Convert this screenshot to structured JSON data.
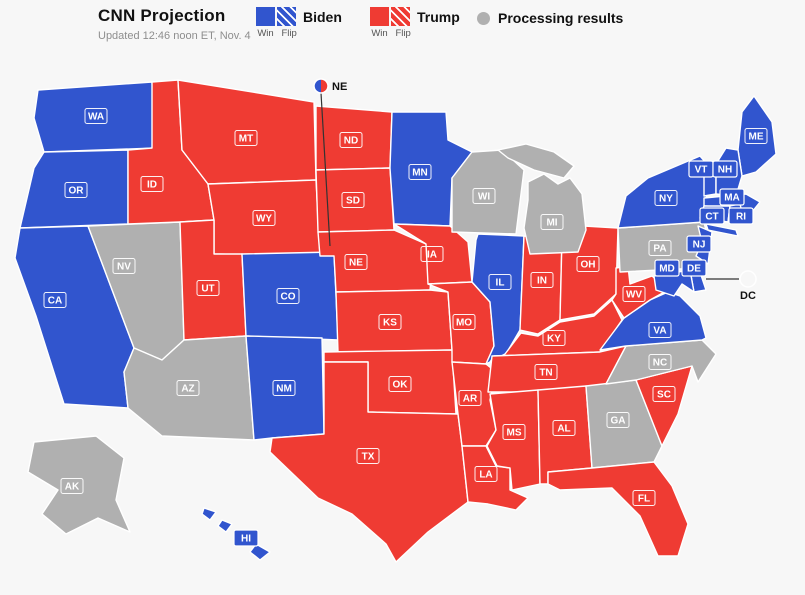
{
  "header": {
    "title": "CNN Projection",
    "updated": "Updated 12:46 noon ET, Nov. 4"
  },
  "legend": {
    "biden_label": "Biden",
    "trump_label": "Trump",
    "processing_label": "Processing results",
    "win_label": "Win",
    "flip_label": "Flip"
  },
  "colors": {
    "biden": "#3155CE",
    "trump": "#EF3B33",
    "processing": "#B0B0B0",
    "background": "#F7F7F7"
  },
  "map": {
    "states": [
      {
        "abbr": "WA",
        "result": "biden"
      },
      {
        "abbr": "OR",
        "result": "biden"
      },
      {
        "abbr": "CA",
        "result": "biden"
      },
      {
        "abbr": "NV",
        "result": "processing"
      },
      {
        "abbr": "ID",
        "result": "trump"
      },
      {
        "abbr": "MT",
        "result": "trump"
      },
      {
        "abbr": "WY",
        "result": "trump"
      },
      {
        "abbr": "UT",
        "result": "trump"
      },
      {
        "abbr": "CO",
        "result": "biden"
      },
      {
        "abbr": "AZ",
        "result": "processing"
      },
      {
        "abbr": "NM",
        "result": "biden"
      },
      {
        "abbr": "ND",
        "result": "trump"
      },
      {
        "abbr": "SD",
        "result": "trump"
      },
      {
        "abbr": "NE",
        "result": "trump"
      },
      {
        "abbr": "KS",
        "result": "trump"
      },
      {
        "abbr": "OK",
        "result": "trump"
      },
      {
        "abbr": "TX",
        "result": "trump"
      },
      {
        "abbr": "MN",
        "result": "biden"
      },
      {
        "abbr": "IA",
        "result": "trump"
      },
      {
        "abbr": "MO",
        "result": "trump"
      },
      {
        "abbr": "AR",
        "result": "trump"
      },
      {
        "abbr": "LA",
        "result": "trump"
      },
      {
        "abbr": "WI",
        "result": "processing"
      },
      {
        "abbr": "IL",
        "result": "biden"
      },
      {
        "abbr": "IN",
        "result": "trump"
      },
      {
        "abbr": "OH",
        "result": "trump"
      },
      {
        "abbr": "MI",
        "result": "processing"
      },
      {
        "abbr": "KY",
        "result": "trump"
      },
      {
        "abbr": "TN",
        "result": "trump"
      },
      {
        "abbr": "MS",
        "result": "trump"
      },
      {
        "abbr": "AL",
        "result": "trump"
      },
      {
        "abbr": "GA",
        "result": "processing"
      },
      {
        "abbr": "FL",
        "result": "trump"
      },
      {
        "abbr": "SC",
        "result": "trump"
      },
      {
        "abbr": "NC",
        "result": "processing"
      },
      {
        "abbr": "VA",
        "result": "biden"
      },
      {
        "abbr": "WV",
        "result": "trump"
      },
      {
        "abbr": "PA",
        "result": "processing"
      },
      {
        "abbr": "NY",
        "result": "biden"
      },
      {
        "abbr": "ME",
        "result": "biden"
      },
      {
        "abbr": "VT",
        "result": "biden"
      },
      {
        "abbr": "NH",
        "result": "biden"
      },
      {
        "abbr": "MA",
        "result": "biden"
      },
      {
        "abbr": "CT",
        "result": "biden"
      },
      {
        "abbr": "RI",
        "result": "biden"
      },
      {
        "abbr": "NJ",
        "result": "biden"
      },
      {
        "abbr": "DE",
        "result": "biden"
      },
      {
        "abbr": "MD",
        "result": "biden"
      },
      {
        "abbr": "AK",
        "result": "processing"
      },
      {
        "abbr": "HI",
        "result": "biden"
      }
    ],
    "chips": [
      {
        "abbr": "VT",
        "result": "biden"
      },
      {
        "abbr": "NH",
        "result": "biden"
      },
      {
        "abbr": "MA",
        "result": "biden"
      },
      {
        "abbr": "CT",
        "result": "biden"
      },
      {
        "abbr": "RI",
        "result": "biden"
      },
      {
        "abbr": "NJ",
        "result": "biden"
      },
      {
        "abbr": "MD",
        "result": "biden"
      },
      {
        "abbr": "DE",
        "result": "biden"
      },
      {
        "abbr": "HI",
        "result": "biden"
      }
    ],
    "callouts": [
      {
        "abbr": "NE",
        "result": "split"
      },
      {
        "abbr": "DC",
        "result": "biden"
      }
    ]
  }
}
